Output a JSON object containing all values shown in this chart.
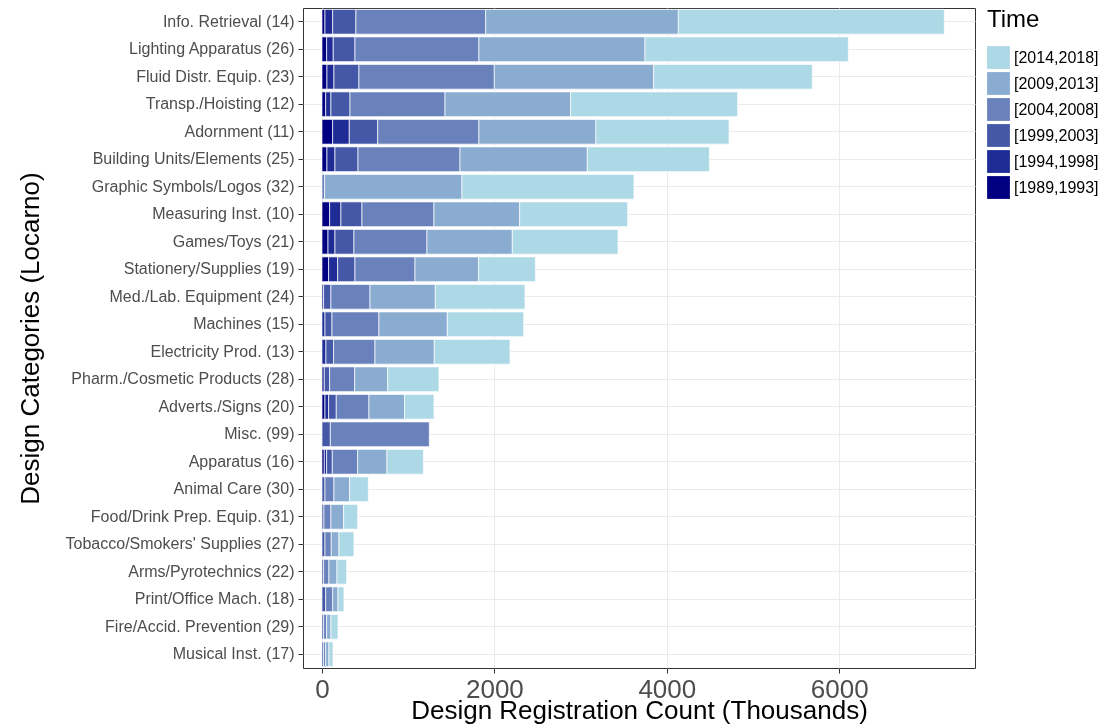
{
  "chart_data": {
    "type": "bar",
    "orientation": "horizontal",
    "stacked": true,
    "xlabel": "Design Registration Count (Thousands)",
    "ylabel": "Design Categories (Locarno)",
    "legend_title": "Time",
    "categories": [
      "Info. Retrieval (14)",
      "Lighting Apparatus (26)",
      "Fluid Distr. Equip. (23)",
      "Transp./Hoisting (12)",
      "Adornment (11)",
      "Building Units/Elements (25)",
      "Graphic Symbols/Logos (32)",
      "Measuring Inst. (10)",
      "Games/Toys (21)",
      "Stationery/Supplies (19)",
      "Med./Lab. Equipment (24)",
      "Machines (15)",
      "Electricity Prod. (13)",
      "Pharm./Cosmetic Products (28)",
      "Adverts./Signs (20)",
      "Misc. (99)",
      "Apparatus (16)",
      "Animal Care (30)",
      "Food/Drink Prep. Equip. (31)",
      "Tobacco/Smokers' Supplies (27)",
      "Arms/Pyrotechnics (22)",
      "Print/Office Mach. (18)",
      "Fire/Accid. Prevention (29)",
      "Musical Inst. (17)"
    ],
    "series": [
      {
        "name": "[1989,1993]",
        "color": "#000080",
        "values": [
          35,
          54,
          58,
          43,
          124,
          58,
          0,
          89,
          70,
          77,
          0,
          0,
          0,
          0,
          35,
          0,
          27,
          0,
          0,
          0,
          0,
          0,
          0,
          0
        ]
      },
      {
        "name": "[1994,1998]",
        "color": "#1f2c96",
        "values": [
          89,
          77,
          81,
          61,
          193,
          93,
          0,
          131,
          81,
          105,
          19,
          35,
          46,
          27,
          42,
          0,
          27,
          0,
          0,
          0,
          0,
          0,
          0,
          0
        ]
      },
      {
        "name": "[1999,2003]",
        "color": "#4558a8",
        "values": [
          270,
          252,
          290,
          221,
          329,
          267,
          0,
          244,
          220,
          201,
          85,
          81,
          89,
          62,
          89,
          97,
          66,
          35,
          23,
          35,
          19,
          43,
          19,
          19
        ]
      },
      {
        "name": "[2004,2008]",
        "color": "#6a82bc",
        "values": [
          1505,
          1438,
          1570,
          1102,
          1175,
          1183,
          31,
          835,
          847,
          696,
          453,
          545,
          480,
          290,
          379,
          1148,
          294,
          104,
          81,
          73,
          62,
          81,
          35,
          24
        ]
      },
      {
        "name": "[2009,2013]",
        "color": "#8aacd1",
        "values": [
          2235,
          1926,
          1849,
          1458,
          1357,
          1477,
          1593,
          994,
          990,
          738,
          758,
          793,
          688,
          383,
          414,
          0,
          340,
          182,
          147,
          89,
          93,
          62,
          50,
          38
        ]
      },
      {
        "name": "[2014,2018]",
        "color": "#add8e6",
        "values": [
          3085,
          2359,
          1840,
          1937,
          1544,
          1416,
          1995,
          1253,
          1226,
          658,
          1040,
          886,
          878,
          595,
          340,
          0,
          422,
          217,
          163,
          174,
          112,
          69,
          82,
          47
        ]
      }
    ],
    "xlim": [
      -220,
      7575
    ],
    "xticks": [
      0,
      2000,
      4000,
      6000
    ],
    "grid": true,
    "legend": "right"
  }
}
